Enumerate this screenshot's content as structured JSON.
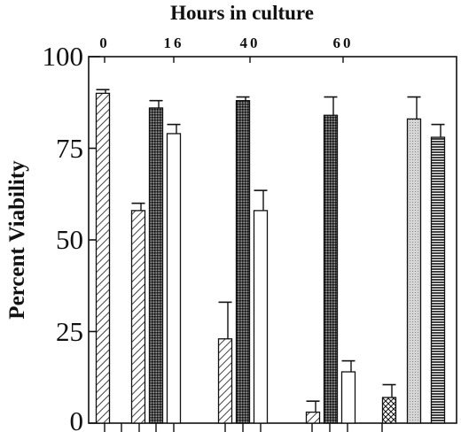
{
  "chart_data": {
    "type": "bar",
    "title": "Hours in culture",
    "ylabel": "Percent Viability",
    "xlabel": "",
    "ylim": [
      0,
      100
    ],
    "yticks": [
      "0",
      "25",
      "50",
      "75",
      "100"
    ],
    "top_tick_labels": [
      "0",
      "16",
      "40",
      "60"
    ],
    "grid": false,
    "bars": [
      {
        "value": 90,
        "error": 1,
        "pattern": "diag-wide"
      },
      {
        "value": 58,
        "error": 2,
        "pattern": "diag-wide"
      },
      {
        "value": 86,
        "error": 2,
        "pattern": "dark-cross"
      },
      {
        "value": 79,
        "error": 2.5,
        "pattern": "white"
      },
      {
        "value": 23,
        "error": 10,
        "pattern": "diag-wide"
      },
      {
        "value": 88,
        "error": 1,
        "pattern": "dark-cross"
      },
      {
        "value": 58,
        "error": 5.5,
        "pattern": "white"
      },
      {
        "value": 3,
        "error": 3,
        "pattern": "diag-wide"
      },
      {
        "value": 84,
        "error": 5,
        "pattern": "dark-cross"
      },
      {
        "value": 14,
        "error": 3,
        "pattern": "white"
      },
      {
        "value": 7,
        "error": 3.5,
        "pattern": "crosshatch"
      },
      {
        "value": 83,
        "error": 6,
        "pattern": "light-dots"
      },
      {
        "value": 78,
        "error": 3.5,
        "pattern": "hlines"
      }
    ]
  }
}
